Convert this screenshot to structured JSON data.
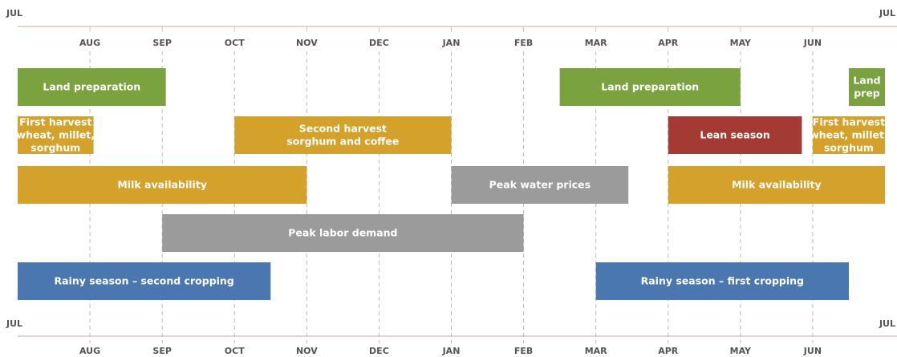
{
  "chart_data": {
    "type": "timeline",
    "xlim": [
      0,
      12
    ],
    "xticks": [
      {
        "value": 0,
        "label": "JUL"
      },
      {
        "value": 1,
        "label": "AUG"
      },
      {
        "value": 2,
        "label": "SEP"
      },
      {
        "value": 3,
        "label": "OCT"
      },
      {
        "value": 4,
        "label": "NOV"
      },
      {
        "value": 5,
        "label": "DEC"
      },
      {
        "value": 6,
        "label": "JAN"
      },
      {
        "value": 7,
        "label": "FEB"
      },
      {
        "value": 8,
        "label": "MAR"
      },
      {
        "value": 9,
        "label": "APR"
      },
      {
        "value": 10,
        "label": "MAY"
      },
      {
        "value": 11,
        "label": "JUN"
      },
      {
        "value": 12,
        "label": "JUL"
      }
    ],
    "grid": true,
    "rows": [
      [
        {
          "label": [
            "Land preparation"
          ],
          "start": 0,
          "end": 2.05,
          "color": "#7aa23f"
        },
        {
          "label": [
            "Land preparation"
          ],
          "start": 7.5,
          "end": 10,
          "color": "#7aa23f"
        },
        {
          "label": [
            "Land",
            "prep"
          ],
          "start": 11.5,
          "end": 12,
          "color": "#7aa23f"
        }
      ],
      [
        {
          "label": [
            "First harvest",
            "wheat, millet,",
            "sorghum"
          ],
          "start": 0,
          "end": 1.05,
          "color": "#d4a12a"
        },
        {
          "label": [
            "Second harvest",
            "sorghum and coffee"
          ],
          "start": 3,
          "end": 6,
          "color": "#d4a12a"
        },
        {
          "label": [
            "Lean season"
          ],
          "start": 9,
          "end": 10.85,
          "color": "#a33a33"
        },
        {
          "label": [
            "First harvest",
            "wheat, millet,",
            "sorghum"
          ],
          "start": 11,
          "end": 12,
          "color": "#d4a12a"
        }
      ],
      [
        {
          "label": [
            "Milk availability"
          ],
          "start": 0,
          "end": 4,
          "color": "#d4a12a"
        },
        {
          "label": [
            "Peak water prices"
          ],
          "start": 6,
          "end": 8.45,
          "color": "#9b9b9b"
        },
        {
          "label": [
            "Milk availability"
          ],
          "start": 9,
          "end": 12,
          "color": "#d4a12a"
        }
      ],
      [
        {
          "label": [
            "Peak labor demand"
          ],
          "start": 2,
          "end": 7,
          "color": "#9b9b9b"
        }
      ],
      [
        {
          "label": [
            "Rainy season – second cropping"
          ],
          "start": 0,
          "end": 3.5,
          "color": "#4a77b0"
        },
        {
          "label": [
            "Rainy season – first cropping"
          ],
          "start": 8,
          "end": 11.5,
          "color": "#4a77b0"
        }
      ]
    ]
  }
}
